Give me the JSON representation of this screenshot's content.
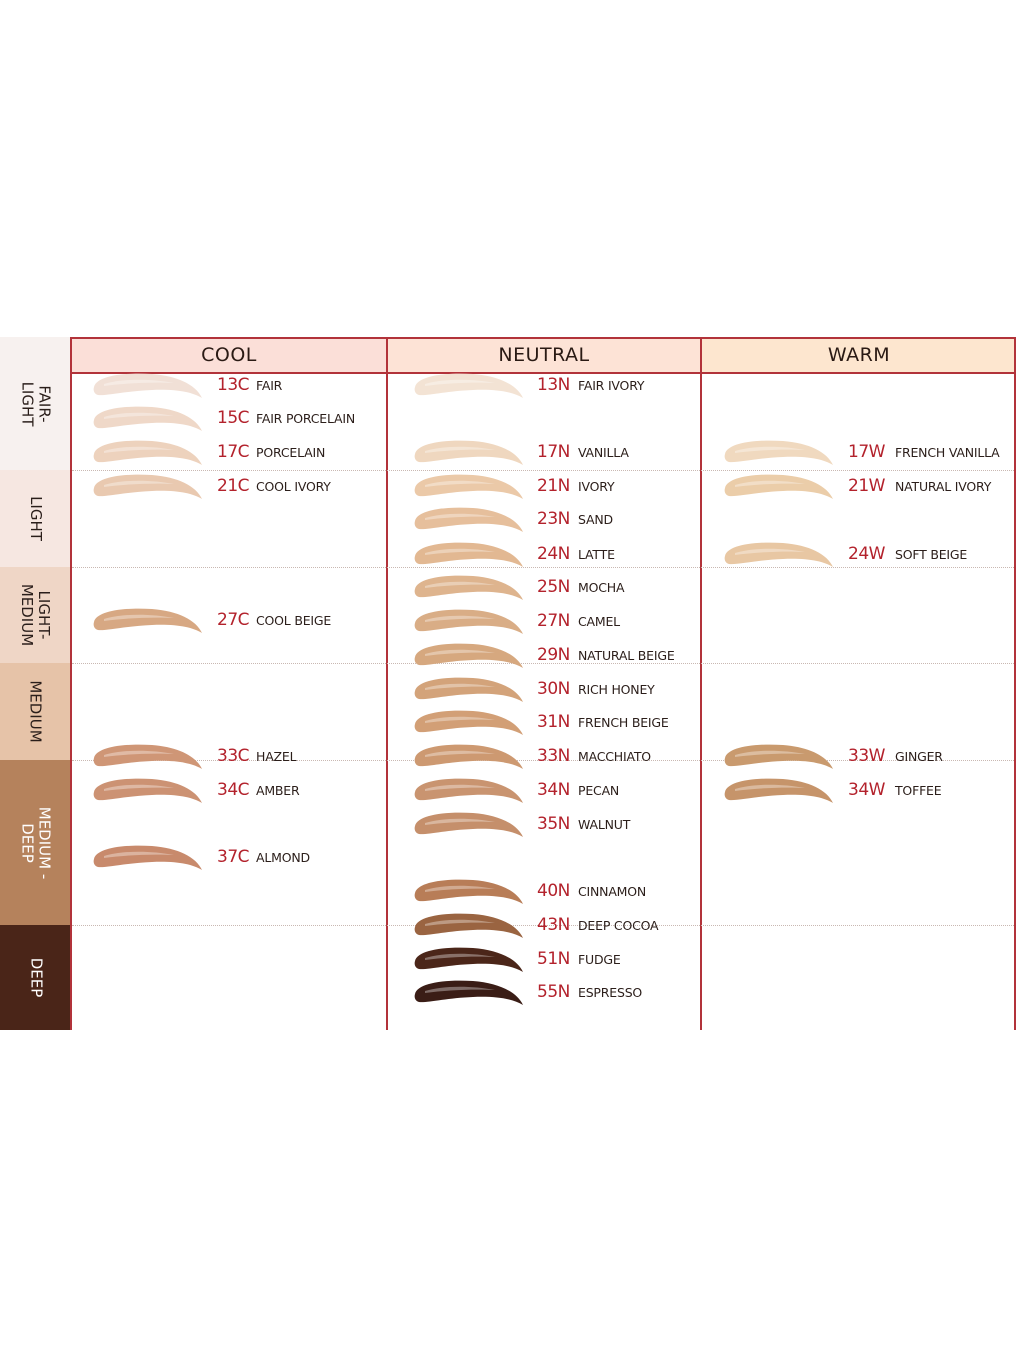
{
  "columns": [
    {
      "label": "COOL",
      "bg": "#fbdfd8"
    },
    {
      "label": "NEUTRAL",
      "bg": "#fde3d6"
    },
    {
      "label": "WARM",
      "bg": "#fde6cf"
    }
  ],
  "rows": [
    {
      "label": "FAIR-\nLIGHT",
      "bg": "#f7f1ef",
      "text_color": "#2a1e1a"
    },
    {
      "label": "LIGHT",
      "bg": "#f6e7e1",
      "text_color": "#2a1e1a"
    },
    {
      "label": "LIGHT-\nMEDIUM",
      "bg": "#efd6c6",
      "text_color": "#2a1e1a"
    },
    {
      "label": "MEDIUM",
      "bg": "#e6c3a8",
      "text_color": "#2a1e1a"
    },
    {
      "label": "MEDIUM -\nDEEP",
      "bg": "#b5825c",
      "text_color": "#ffffff"
    },
    {
      "label": "DEEP",
      "bg": "#4a2518",
      "text_color": "#ffffff"
    }
  ],
  "shades": [
    {
      "code": "13C",
      "name": "FAIR",
      "column": "COOL",
      "color": "#f1e0d6"
    },
    {
      "code": "15C",
      "name": "FAIR PORCELAIN",
      "column": "COOL",
      "color": "#efd8c8"
    },
    {
      "code": "17C",
      "name": "PORCELAIN",
      "column": "COOL",
      "color": "#edd2bd"
    },
    {
      "code": "21C",
      "name": "COOL IVORY",
      "column": "COOL",
      "color": "#e9c9b0"
    },
    {
      "code": "27C",
      "name": "COOL BEIGE",
      "column": "COOL",
      "color": "#d7a883"
    },
    {
      "code": "33C",
      "name": "HAZEL",
      "column": "COOL",
      "color": "#cf9676"
    },
    {
      "code": "34C",
      "name": "AMBER",
      "column": "COOL",
      "color": "#cc9273"
    },
    {
      "code": "37C",
      "name": "ALMOND",
      "column": "COOL",
      "color": "#c88a6c"
    },
    {
      "code": "13N",
      "name": "FAIR IVORY",
      "column": "NEUTRAL",
      "color": "#f3e3d4"
    },
    {
      "code": "17N",
      "name": "VANILLA",
      "column": "NEUTRAL",
      "color": "#efd7bf"
    },
    {
      "code": "21N",
      "name": "IVORY",
      "column": "NEUTRAL",
      "color": "#ebc9a8"
    },
    {
      "code": "23N",
      "name": "SAND",
      "column": "NEUTRAL",
      "color": "#e6bf9c"
    },
    {
      "code": "24N",
      "name": "LATTE",
      "column": "NEUTRAL",
      "color": "#e2b892"
    },
    {
      "code": "25N",
      "name": "MOCHA",
      "column": "NEUTRAL",
      "color": "#deb48e"
    },
    {
      "code": "27N",
      "name": "CAMEL",
      "column": "NEUTRAL",
      "color": "#d9ad86"
    },
    {
      "code": "29N",
      "name": "NATURAL BEIGE",
      "column": "NEUTRAL",
      "color": "#d6a87f"
    },
    {
      "code": "30N",
      "name": "RICH HONEY",
      "column": "NEUTRAL",
      "color": "#d3a37a"
    },
    {
      "code": "31N",
      "name": "FRENCH BEIGE",
      "column": "NEUTRAL",
      "color": "#d29f76"
    },
    {
      "code": "33N",
      "name": "MACCHIATO",
      "column": "NEUTRAL",
      "color": "#cd9971"
    },
    {
      "code": "34N",
      "name": "PECAN",
      "column": "NEUTRAL",
      "color": "#c99470"
    },
    {
      "code": "35N",
      "name": "WALNUT",
      "column": "NEUTRAL",
      "color": "#c58f6b"
    },
    {
      "code": "40N",
      "name": "CINNAMON",
      "column": "NEUTRAL",
      "color": "#b87d57"
    },
    {
      "code": "43N",
      "name": "DEEP COCOA",
      "column": "NEUTRAL",
      "color": "#9a6441"
    },
    {
      "code": "51N",
      "name": "FUDGE",
      "column": "NEUTRAL",
      "color": "#4b2619"
    },
    {
      "code": "55N",
      "name": "ESPRESSO",
      "column": "NEUTRAL",
      "color": "#3a1d16"
    },
    {
      "code": "17W",
      "name": "FRENCH VANILLA",
      "column": "WARM",
      "color": "#f0d9bf"
    },
    {
      "code": "21W",
      "name": "NATURAL IVORY",
      "column": "WARM",
      "color": "#ebcda9"
    },
    {
      "code": "24W",
      "name": "SOFT BEIGE",
      "column": "WARM",
      "color": "#e8c7a3"
    },
    {
      "code": "33W",
      "name": "GINGER",
      "column": "WARM",
      "color": "#c99a6e"
    },
    {
      "code": "34W",
      "name": "TOFFEE",
      "column": "WARM",
      "color": "#c6946a"
    }
  ]
}
